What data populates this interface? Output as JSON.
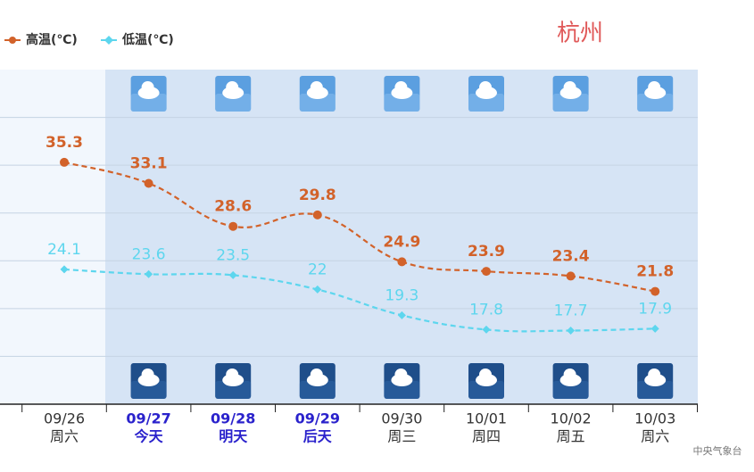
{
  "chart_data": {
    "type": "line",
    "title": "杭州",
    "source": "中央气象台",
    "categories": [
      "09/26",
      "09/27",
      "09/28",
      "09/29",
      "09/30",
      "10/01",
      "10/02",
      "10/03"
    ],
    "weekdays": [
      "周六",
      "今天",
      "明天",
      "后天",
      "周三",
      "周四",
      "周五",
      "周六"
    ],
    "highlighted": [
      false,
      true,
      true,
      true,
      false,
      false,
      false,
      false
    ],
    "series": [
      {
        "name": "高温(℃)",
        "color": "#d2622a",
        "marker": "circle",
        "values": [
          35.3,
          33.1,
          28.6,
          29.8,
          24.9,
          23.9,
          23.4,
          21.8
        ]
      },
      {
        "name": "低温(℃)",
        "color": "#5dd6ee",
        "marker": "diamond",
        "values": [
          24.1,
          23.6,
          23.5,
          22,
          19.3,
          17.8,
          17.7,
          17.9
        ]
      }
    ],
    "ylim": [
      10,
      45
    ],
    "yticks": [
      15,
      20,
      25,
      30,
      35,
      40
    ],
    "grid": true
  }
}
